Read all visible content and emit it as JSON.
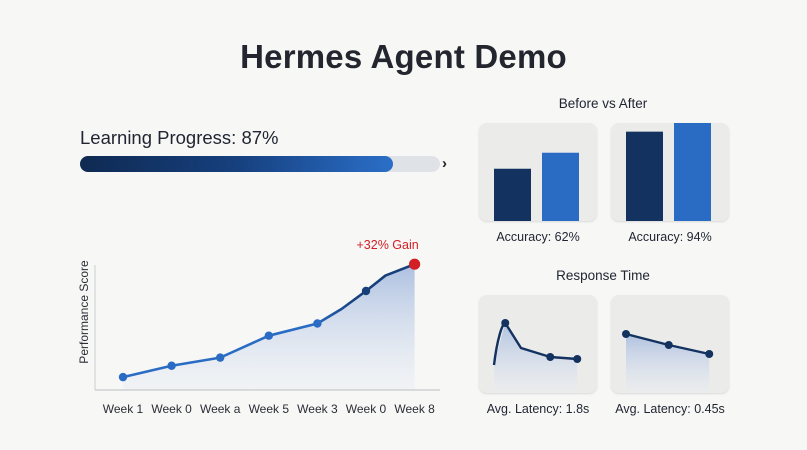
{
  "title": "Hermes Agent Demo",
  "progress": {
    "label": "Learning Progress: 87%",
    "value": 0.87,
    "chevron": "›"
  },
  "colors": {
    "navy": "#13325f",
    "blue": "#2a6cc4",
    "gain_red": "#d21f26"
  },
  "chart_data": [
    {
      "type": "line",
      "ylabel": "Performance Score",
      "categories": [
        "Week 1",
        "Week 0",
        "Week a",
        "Week 5",
        "Week 3",
        "Week 0",
        "Week 8"
      ],
      "points": [
        {
          "x": 0,
          "y": 6
        },
        {
          "x": 1,
          "y": 20
        },
        {
          "x": 2,
          "y": 30
        },
        {
          "x": 3,
          "y": 57
        },
        {
          "x": 4,
          "y": 72
        },
        {
          "x": 4.5,
          "y": 90
        },
        {
          "x": 5,
          "y": 112
        },
        {
          "x": 5.4,
          "y": 131
        },
        {
          "x": 6,
          "y": 145
        }
      ],
      "marker_indices": [
        0,
        1,
        2,
        3,
        4,
        6
      ],
      "highlight_index": 8,
      "annotation": "+32% Gain",
      "ylim": [
        0,
        160
      ]
    },
    {
      "type": "bar",
      "title": "Before vs After",
      "panels": [
        {
          "label": "Accuracy: 62%",
          "values": [
            62,
            81
          ]
        },
        {
          "label": "Accuracy: 94%",
          "values": [
            106,
            124
          ]
        }
      ],
      "ylim": [
        0,
        140
      ]
    },
    {
      "type": "line",
      "title": "Response Time",
      "panels": [
        {
          "label": "Avg. Latency: 1.8s",
          "x": [
            0,
            0.5,
            1.2,
            2.5,
            3.7
          ],
          "y": [
            0,
            42,
            17,
            8,
            6
          ],
          "marker_indices": [
            1,
            3,
            4
          ]
        },
        {
          "label": "Avg. Latency: 0.45s",
          "x": [
            0,
            1.9,
            3.7
          ],
          "y": [
            31,
            20,
            11
          ],
          "marker_indices": [
            0,
            1,
            2
          ]
        }
      ],
      "ylim": [
        0,
        50
      ]
    }
  ]
}
